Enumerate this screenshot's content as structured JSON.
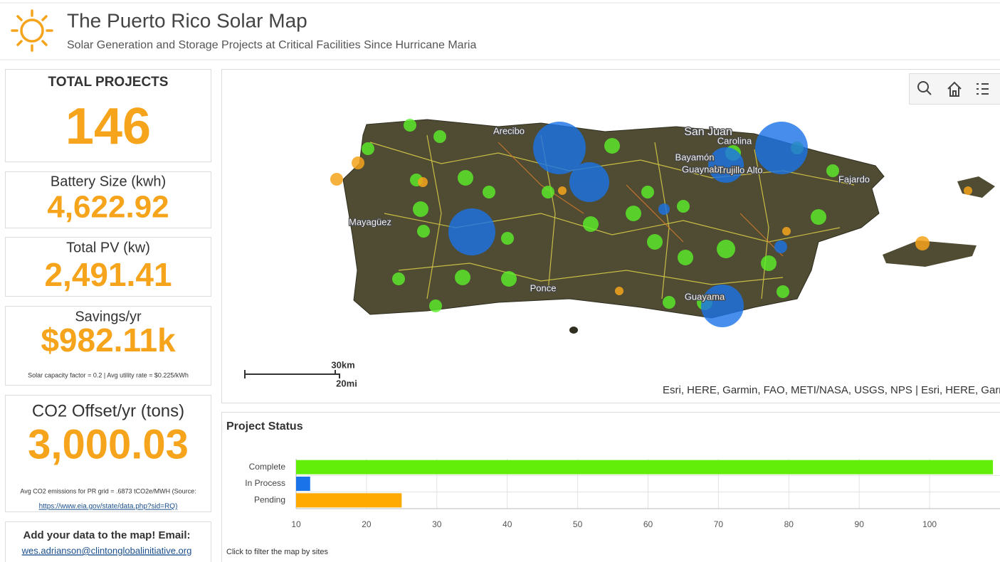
{
  "header": {
    "title": "The Puerto Rico Solar Map",
    "subtitle": "Solar Generation and Storage Projects at Critical Facilities Since Hurricane Maria"
  },
  "cards": [
    {
      "label": "TOTAL PROJECTS",
      "value": "146"
    },
    {
      "label": "Battery Size (kwh)",
      "value": "4,622.92"
    },
    {
      "label": "Total PV (kw)",
      "value": "2,491.41"
    },
    {
      "label": "Savings/yr",
      "value": "$982.11k",
      "note": "Solar capacity factor  = 0.2 | Avg  utility rate = $0.225/kWh"
    },
    {
      "label": "CO2 Offset/yr (tons)",
      "value": "3,000.03",
      "note": "Avg CO2 emissions for PR grid = .6873 tCO2e/MWH (Source:",
      "link": "https://www.eia.gov/state/data.php?sid=RQ)"
    }
  ],
  "contact": {
    "text": "Add your data to the map!  Email:",
    "email": "wes.adrianson@clintonglobalinitiative.org"
  },
  "map": {
    "places": [
      "Arecibo",
      "San Juan",
      "Carolina",
      "Bayamón",
      "Guaynabo",
      "Trujillo Alto",
      "Fajardo",
      "Mayagüez",
      "Ponce",
      "Guayama"
    ],
    "scale_km": "30km",
    "scale_mi": "20mi",
    "attribution": "Esri, HERE, Garmin, FAO, METI/NASA, USGS, NPS | Esri, HERE, Garmin"
  },
  "chart_data": {
    "type": "hbar",
    "title": "Project Status",
    "note": "Click to filter  the map by sites",
    "categories": [
      "Complete",
      "In Process",
      "Pending"
    ],
    "values": [
      109,
      12,
      25
    ],
    "colors": [
      "#63ee0a",
      "#1a73e8",
      "#ffaa00"
    ],
    "xlim": [
      10,
      110
    ],
    "xticks": [
      10,
      20,
      30,
      40,
      50,
      60,
      70,
      80,
      90,
      100
    ],
    "grid": true
  }
}
